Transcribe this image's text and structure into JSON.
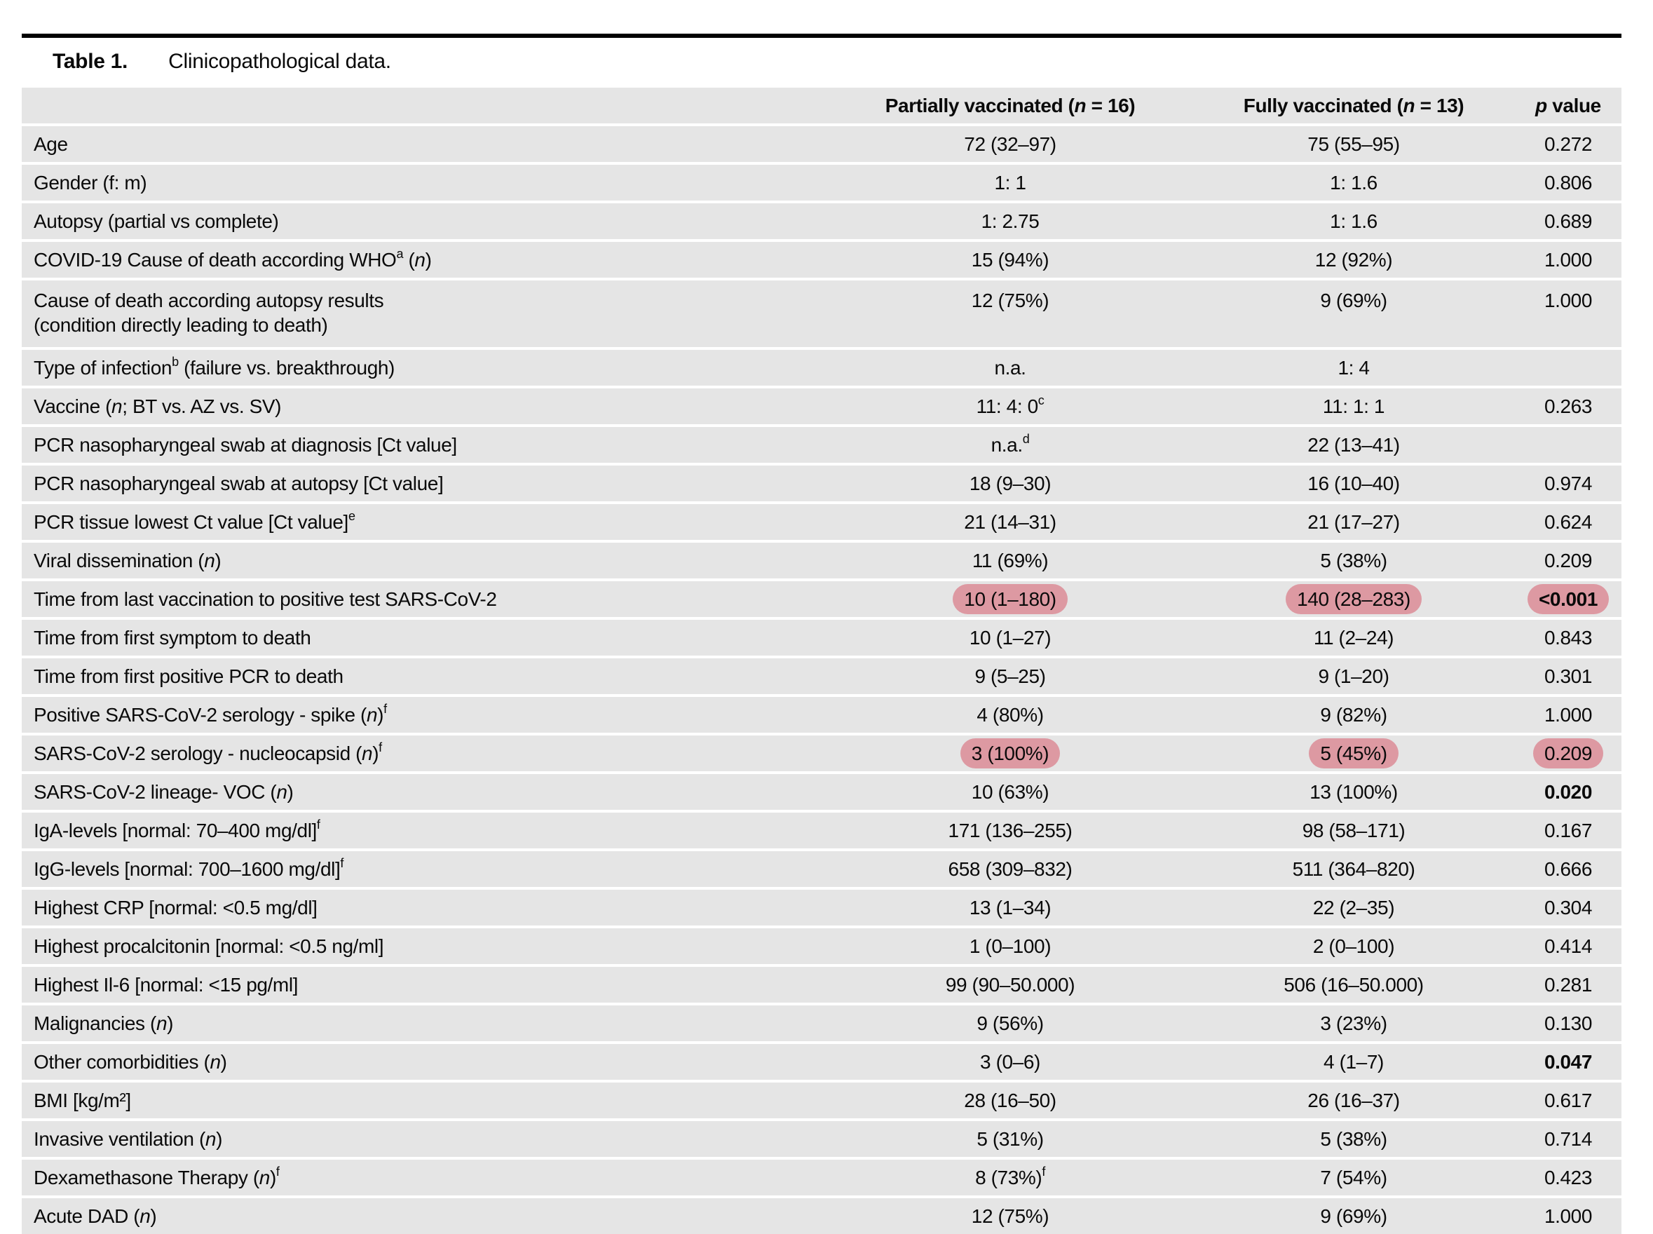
{
  "caption": {
    "label": "Table 1.",
    "text": "Clinicopathological data."
  },
  "colors": {
    "row_bg": "#e5e5e5",
    "highlight": "#dd99a2",
    "rule": "#000000",
    "text": "#0a0a0a"
  },
  "header": {
    "label_col": "",
    "col_partial": "Partially vaccinated (<i>n</i> = 16)",
    "col_full": "Fully vaccinated (<i>n</i> = 13)",
    "col_p": "<i>p</i> value"
  },
  "rows": [
    {
      "label": "Age",
      "partial": "72 (32–97)",
      "full": "75 (55–95)",
      "p": "0.272"
    },
    {
      "label": "Gender (f: m)",
      "partial": "1: 1",
      "full": "1: 1.6",
      "p": "0.806"
    },
    {
      "label": "Autopsy (partial vs complete)",
      "partial": "1: 2.75",
      "full": "1: 1.6",
      "p": "0.689"
    },
    {
      "label": "COVID-19 Cause of death according WHO<sup>a</sup> (<i>n</i>)",
      "partial": "15 (94%)",
      "full": "12 (92%)",
      "p": "1.000"
    },
    {
      "label": "Cause of death according autopsy results<br>(condition directly leading to death)",
      "partial": "12 (75%)",
      "full": "9 (69%)",
      "p": "1.000",
      "tall": true
    },
    {
      "label": "Type of infection<sup>b</sup> (failure vs. breakthrough)",
      "partial": "n.a.",
      "full": "1: 4",
      "p": ""
    },
    {
      "label": "Vaccine (<i>n</i>; BT vs. AZ vs. SV)",
      "partial": "11: 4: 0<sup>c</sup>",
      "full": "11: 1: 1",
      "p": "0.263"
    },
    {
      "label": "PCR nasopharyngeal swab at diagnosis [Ct value]",
      "partial": "n.a.<sup>d</sup>",
      "full": "22 (13–41)",
      "p": ""
    },
    {
      "label": "PCR nasopharyngeal swab at autopsy [Ct value]",
      "partial": "18 (9–30)",
      "full": "16 (10–40)",
      "p": "0.974"
    },
    {
      "label": "PCR tissue lowest Ct value [Ct value]<sup>e</sup>",
      "partial": "21 (14–31)",
      "full": "21 (17–27)",
      "p": "0.624"
    },
    {
      "label": "Viral dissemination (<i>n</i>)",
      "partial": "11 (69%)",
      "full": "5 (38%)",
      "p": "0.209"
    },
    {
      "label": "Time from last vaccination to positive test SARS-CoV-2",
      "partial": "10 (1–180)",
      "full": "140 (28–283)",
      "p": "&lt;0.001",
      "p_bold": true,
      "hl": [
        "partial",
        "full",
        "p"
      ]
    },
    {
      "label": "Time from first symptom to death",
      "partial": "10 (1–27)",
      "full": "11 (2–24)",
      "p": "0.843"
    },
    {
      "label": "Time from first positive PCR to death",
      "partial": "9 (5–25)",
      "full": "9 (1–20)",
      "p": "0.301"
    },
    {
      "label": "Positive SARS-CoV-2 serology - spike (<i>n</i>)<sup>f</sup>",
      "partial": "4 (80%)",
      "full": "9 (82%)",
      "p": "1.000"
    },
    {
      "label": "SARS-CoV-2 serology - nucleocapsid (<i>n</i>)<sup>f</sup>",
      "partial": "3 (100%)",
      "full": "5 (45%)",
      "p": "0.209",
      "hl": [
        "partial",
        "full",
        "p"
      ]
    },
    {
      "label": "SARS-CoV-2 lineage- VOC (<i>n</i>)",
      "partial": "10 (63%)",
      "full": "13 (100%)",
      "p": "0.020",
      "p_bold": true
    },
    {
      "label": "IgA-levels [normal: 70–400 mg/dl]<sup>f</sup>",
      "partial": "171 (136–255)",
      "full": "98 (58–171)",
      "p": "0.167"
    },
    {
      "label": "IgG-levels [normal: 700–1600 mg/dl]<sup>f</sup>",
      "partial": "658 (309–832)",
      "full": "511 (364–820)",
      "p": "0.666"
    },
    {
      "label": "Highest CRP [normal: &lt;0.5 mg/dl]",
      "partial": "13 (1–34)",
      "full": "22 (2–35)",
      "p": "0.304"
    },
    {
      "label": "Highest procalcitonin [normal: &lt;0.5 ng/ml]",
      "partial": "1 (0–100)",
      "full": "2 (0–100)",
      "p": "0.414"
    },
    {
      "label": "Highest Il-6 [normal: &lt;15 pg/ml]",
      "partial": "99 (90–50.000)",
      "full": "506 (16–50.000)",
      "p": "0.281"
    },
    {
      "label": "Malignancies (<i>n</i>)",
      "partial": "9 (56%)",
      "full": "3 (23%)",
      "p": "0.130"
    },
    {
      "label": "Other comorbidities (<i>n</i>)",
      "partial": "3 (0–6)",
      "full": "4 (1–7)",
      "p": "0.047",
      "p_bold": true
    },
    {
      "label": "BMI [kg/m²]",
      "partial": "28 (16–50)",
      "full": "26 (16–37)",
      "p": "0.617"
    },
    {
      "label": "Invasive ventilation (<i>n</i>)",
      "partial": "5 (31%)",
      "full": "5 (38%)",
      "p": "0.714"
    },
    {
      "label": "Dexamethasone Therapy (<i>n</i>)<sup>f</sup>",
      "partial": "8 (73%)<sup>f</sup>",
      "full": "7 (54%)",
      "p": "0.423"
    },
    {
      "label": "Acute DAD (<i>n</i>)",
      "partial": "12 (75%)",
      "full": "9 (69%)",
      "p": "1.000"
    }
  ]
}
